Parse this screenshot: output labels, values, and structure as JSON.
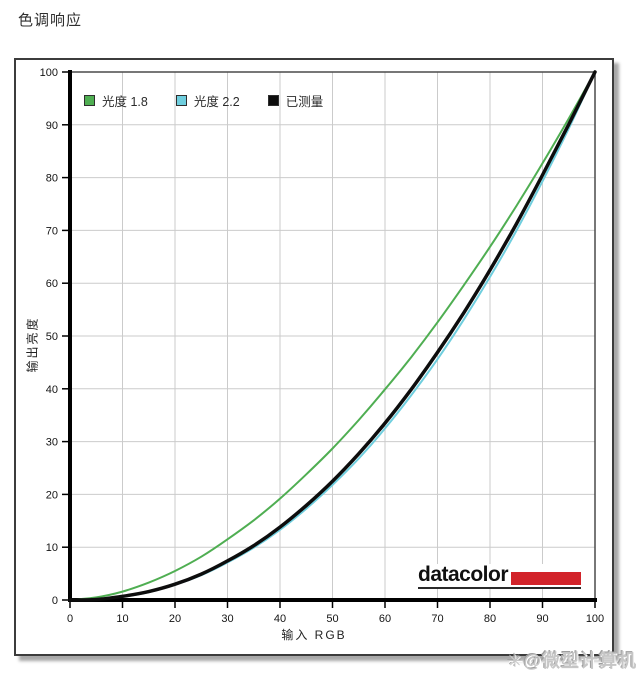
{
  "page": {
    "title": "色调响应",
    "watermark": {
      "icon": "✳",
      "text": "@微型计算机"
    }
  },
  "chart_data": {
    "type": "line",
    "title": "色调响应",
    "xlabel": "输入  RGB",
    "ylabel": "输出亮度",
    "xlim": [
      0,
      100
    ],
    "ylim": [
      0,
      100
    ],
    "x_ticks": [
      0,
      10,
      20,
      30,
      40,
      50,
      60,
      70,
      80,
      90,
      100
    ],
    "y_ticks": [
      0,
      10,
      20,
      30,
      40,
      50,
      60,
      70,
      80,
      90,
      100
    ],
    "grid": true,
    "grid_color": "#cbcbcb",
    "frame_color": "#4a4a4a",
    "axis_color": "#000000",
    "legend_position": "top-left-inside",
    "x": [
      0,
      5,
      10,
      15,
      20,
      25,
      30,
      35,
      40,
      45,
      50,
      55,
      60,
      65,
      70,
      75,
      80,
      85,
      90,
      95,
      100
    ],
    "series": [
      {
        "name": "光度 1.8",
        "color": "#4fae52",
        "width": 2,
        "values": [
          0,
          0.5,
          1.6,
          3.3,
          5.5,
          8.2,
          11.5,
          15.1,
          19.2,
          23.8,
          28.7,
          34.1,
          39.9,
          46.0,
          52.6,
          59.6,
          66.9,
          74.6,
          82.7,
          91.2,
          100
        ]
      },
      {
        "name": "光度 2.2",
        "color": "#6fcede",
        "width": 2,
        "values": [
          0,
          0.1,
          0.6,
          1.5,
          2.9,
          4.7,
          7.1,
          9.9,
          13.3,
          17.3,
          21.8,
          26.8,
          32.5,
          38.8,
          45.6,
          53.1,
          61.2,
          69.9,
          79.3,
          89.3,
          100
        ]
      },
      {
        "name": "已测量",
        "color": "#0d0d0d",
        "width": 3.5,
        "values": [
          0,
          0.1,
          0.7,
          1.6,
          3.0,
          4.9,
          7.4,
          10.3,
          13.8,
          17.9,
          22.5,
          27.7,
          33.5,
          39.9,
          46.9,
          54.4,
          62.5,
          71.2,
          80.5,
          90.1,
          100
        ]
      }
    ],
    "branding": {
      "text": "datacolor",
      "bar_color": "#d2232a"
    }
  }
}
